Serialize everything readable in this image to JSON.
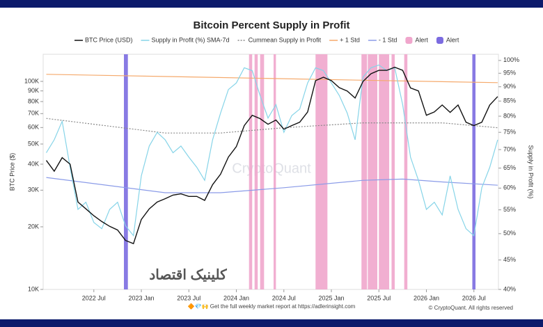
{
  "chart_data": {
    "type": "line",
    "title": "Bitcoin Percent Supply in Profit",
    "y_label": "BTC Price ($)",
    "y2_label": "Supply in Profit (%)",
    "watermark": "CryptoQuant",
    "overlay_text": "کلینیک اقتصاد",
    "footer": "🔶💎🙌 Get the full weekly market report at https://adlerinsight.com",
    "copyright": "© CryptoQuant. All rights reserved",
    "xlim": [
      -0.4,
      57.1
    ],
    "xticks": [
      {
        "value": 6,
        "label": "2022 Jul"
      },
      {
        "value": 12,
        "label": "2023 Jan"
      },
      {
        "value": 18,
        "label": "2023 Jul"
      },
      {
        "value": 24,
        "label": "2024 Jan"
      },
      {
        "value": 30,
        "label": "2024 Jul"
      },
      {
        "value": 36,
        "label": "2025 Jan"
      },
      {
        "value": 42,
        "label": "2025 Jul"
      },
      {
        "value": 48,
        "label": "2026 Jan"
      },
      {
        "value": 54,
        "label": "2026 Jul"
      }
    ],
    "yscale": "log",
    "ylim": [
      10000,
      135000
    ],
    "yticks": [
      {
        "value": 10000,
        "label": "10K"
      },
      {
        "value": 20000,
        "label": "20K"
      },
      {
        "value": 30000,
        "label": "30K"
      },
      {
        "value": 40000,
        "label": "40K"
      },
      {
        "value": 50000,
        "label": "50K"
      },
      {
        "value": 60000,
        "label": "60K"
      },
      {
        "value": 70000,
        "label": "70K"
      },
      {
        "value": 80000,
        "label": "80K"
      },
      {
        "value": 90000,
        "label": "90K"
      },
      {
        "value": 100000,
        "label": "100K"
      }
    ],
    "y2scale": "log",
    "y2lim": [
      40,
      102.5
    ],
    "y2ticks": [
      {
        "value": 40,
        "label": "40%"
      },
      {
        "value": 45,
        "label": "45%"
      },
      {
        "value": 50,
        "label": "50%"
      },
      {
        "value": 55,
        "label": "55%"
      },
      {
        "value": 60,
        "label": "60%"
      },
      {
        "value": 65,
        "label": "65%"
      },
      {
        "value": 70,
        "label": "70%"
      },
      {
        "value": 75,
        "label": "75%"
      },
      {
        "value": 80,
        "label": "80%"
      },
      {
        "value": 85,
        "label": "85%"
      },
      {
        "value": 90,
        "label": "90%"
      },
      {
        "value": 95,
        "label": "95%"
      },
      {
        "value": 100,
        "label": "100%"
      }
    ],
    "alerts": [
      {
        "name": "Alert",
        "color": "#f0a6cc",
        "ranges": [
          [
            25.6,
            26.0
          ],
          [
            26.3,
            26.7
          ],
          [
            27.0,
            27.5
          ],
          [
            28.7,
            29.0
          ],
          [
            34.0,
            35.5
          ],
          [
            39.8,
            40.5
          ],
          [
            40.6,
            41.8
          ],
          [
            42.0,
            43.3
          ],
          [
            43.6,
            44.0
          ],
          [
            45.2,
            45.6
          ]
        ]
      },
      {
        "name": "Alert",
        "color": "#7b6be0",
        "ranges": [
          [
            9.8,
            10.3
          ],
          [
            53.8,
            54.2
          ]
        ]
      }
    ],
    "series": [
      {
        "name": "BTC Price (USD)",
        "color": "#111111",
        "style": "solid",
        "x": [
          0,
          1,
          2,
          3,
          4,
          5,
          6,
          7,
          8,
          9,
          10,
          11,
          12,
          13,
          14,
          15,
          16,
          17,
          18,
          19,
          20,
          21,
          22,
          23,
          24,
          25,
          26,
          27,
          28,
          29,
          30,
          31,
          32,
          33,
          34,
          35,
          36,
          37,
          38,
          39,
          40,
          41,
          42,
          43,
          44,
          45,
          46,
          47,
          48,
          49,
          50,
          51,
          52,
          53,
          54,
          55,
          56,
          57
        ],
        "values": [
          41700,
          37000,
          43000,
          40000,
          26300,
          24400,
          22600,
          21200,
          20100,
          19300,
          17200,
          16600,
          21700,
          24400,
          26300,
          27300,
          28400,
          28800,
          28000,
          28000,
          26800,
          31900,
          35800,
          43300,
          48600,
          61300,
          68700,
          66200,
          62200,
          65200,
          58900,
          61300,
          63600,
          71300,
          100800,
          104700,
          100800,
          93300,
          89800,
          83200,
          100000,
          108800,
          113000,
          113000,
          117000,
          113000,
          93000,
          90000,
          68700,
          71300,
          77000,
          71000,
          77000,
          63600,
          61300,
          63600,
          77000,
          84500
        ]
      },
      {
        "name": "Supply in Profit (%) SMA-7d",
        "color": "#86d4e8",
        "style": "solid",
        "axis": "y2",
        "x": [
          0,
          1,
          2,
          3,
          4,
          5,
          6,
          7,
          8,
          9,
          10,
          11,
          12,
          13,
          14,
          15,
          16,
          17,
          18,
          19,
          20,
          21,
          22,
          23,
          24,
          25,
          26,
          27,
          28,
          29,
          30,
          31,
          32,
          33,
          34,
          35,
          36,
          37,
          38,
          39,
          40,
          41,
          42,
          43,
          44,
          45,
          46,
          47,
          48,
          49,
          50,
          51,
          52,
          53,
          54,
          55,
          56,
          57
        ],
        "values": [
          69.1,
          72.8,
          78.4,
          65.2,
          55.1,
          56.7,
          52.3,
          51.0,
          55.1,
          56.7,
          51.6,
          49.6,
          63.0,
          71.0,
          75.0,
          72.8,
          69.1,
          71.0,
          67.9,
          65.2,
          61.9,
          72.8,
          81.0,
          89.0,
          91.4,
          97.1,
          96.0,
          86.9,
          79.4,
          83.8,
          75.0,
          80.2,
          82.3,
          91.4,
          97.1,
          96.0,
          91.4,
          86.9,
          81.0,
          72.8,
          93.6,
          97.1,
          98.2,
          96.0,
          97.1,
          83.8,
          67.9,
          61.9,
          55.1,
          56.7,
          53.9,
          63.0,
          55.1,
          51.0,
          49.6,
          60.1,
          65.2,
          72.8
        ]
      },
      {
        "name": "Cummean Supply in Profit",
        "color": "#888888",
        "style": "dotted",
        "axis": "y2",
        "x": [
          0,
          15,
          22,
          30,
          40,
          50,
          57
        ],
        "values": [
          79.3,
          74.8,
          74.8,
          76.4,
          77.9,
          77.9,
          76.4
        ]
      },
      {
        "name": "+ 1 Std",
        "color": "#f5a96b",
        "style": "solid",
        "axis": "y2",
        "x": [
          0,
          20,
          40,
          57
        ],
        "values": [
          94.6,
          93.5,
          92.4,
          91.5
        ]
      },
      {
        "name": "- 1 Std",
        "color": "#8a9be8",
        "style": "solid",
        "axis": "y2",
        "x": [
          0,
          15,
          22,
          30,
          40,
          45,
          50,
          57
        ],
        "values": [
          62.6,
          58.9,
          58.9,
          60.1,
          61.9,
          62.2,
          61.5,
          60.7
        ]
      }
    ]
  }
}
